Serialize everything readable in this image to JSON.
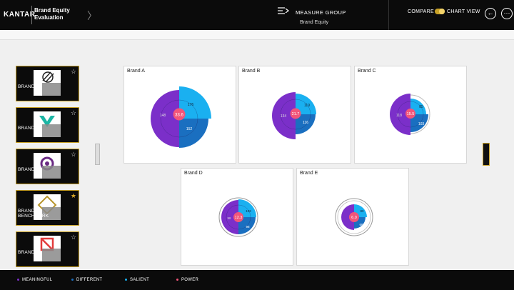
{
  "header": {
    "logo": "KANTAR",
    "title_line1": "Brand Equity",
    "title_line2": "Evaluation",
    "chevron": "〉",
    "measure_group_label": "MEASURE GROUP",
    "measure_group_value": "Brand Equity",
    "compare_label": "COMPARE",
    "chart_view_label": "CHART VIEW",
    "back_icon": "←",
    "more_icon": "⋯"
  },
  "colors": {
    "meaningful": "#7b2fc9",
    "different": "#1a6fc0",
    "salient": "#1ab0f0",
    "power": "#f2557a",
    "accent": "#c9a227"
  },
  "sidebar": {
    "items": [
      {
        "label": "BRAND A",
        "starred": false,
        "star": "☆"
      },
      {
        "label": "BRAND B",
        "starred": false,
        "star": "☆"
      },
      {
        "label": "BRAND C",
        "starred": false,
        "star": "☆"
      },
      {
        "label": "BRAND D",
        "sublabel": "BENCHMARK",
        "starred": true,
        "star": "★"
      },
      {
        "label": "BRAND E",
        "starred": false,
        "star": "☆"
      }
    ]
  },
  "cards": [
    {
      "title": "Brand A",
      "power": "33.6",
      "meaningful": "148",
      "salient": "176",
      "different": "152"
    },
    {
      "title": "Brand B",
      "power": "21.7",
      "meaningful": "134",
      "salient": "119",
      "different": "116"
    },
    {
      "title": "Brand C",
      "power": "15.5",
      "meaningful": "118",
      "salient": "85",
      "different": "103"
    },
    {
      "title": "Brand D",
      "power": "12.3",
      "meaningful": "98",
      "salient": "102",
      "different": "98"
    },
    {
      "title": "Brand E",
      "power": "6.0",
      "meaningful": "",
      "salient": "80",
      "different": "68"
    }
  ],
  "legend": [
    {
      "label": "MEANINGFUL",
      "key": "meaningful"
    },
    {
      "label": "DIFFERENT",
      "key": "different"
    },
    {
      "label": "SALIENT",
      "key": "salient"
    },
    {
      "label": "POWER",
      "key": "power"
    }
  ]
}
